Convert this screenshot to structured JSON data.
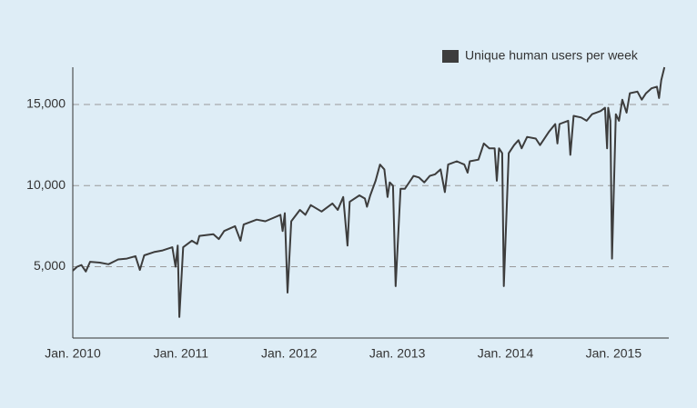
{
  "chart_data": {
    "type": "line",
    "x": [
      2010.0,
      2010.04,
      2010.08,
      2010.12,
      2010.16,
      2010.25,
      2010.33,
      2010.42,
      2010.5,
      2010.58,
      2010.62,
      2010.66,
      2010.75,
      2010.83,
      2010.92,
      2010.95,
      2010.97,
      2010.985,
      2011.02,
      2011.1,
      2011.15,
      2011.17,
      2011.3,
      2011.35,
      2011.4,
      2011.5,
      2011.55,
      2011.58,
      2011.7,
      2011.78,
      2011.85,
      2011.92,
      2011.94,
      2011.96,
      2011.985,
      2012.02,
      2012.1,
      2012.15,
      2012.2,
      2012.3,
      2012.4,
      2012.45,
      2012.5,
      2012.54,
      2012.56,
      2012.65,
      2012.7,
      2012.72,
      2012.75,
      2012.8,
      2012.84,
      2012.88,
      2012.91,
      2012.93,
      2012.96,
      2012.985,
      2013.03,
      2013.07,
      2013.1,
      2013.15,
      2013.2,
      2013.25,
      2013.3,
      2013.35,
      2013.4,
      2013.44,
      2013.47,
      2013.55,
      2013.62,
      2013.65,
      2013.67,
      2013.75,
      2013.8,
      2013.85,
      2013.9,
      2013.92,
      2013.94,
      2013.97,
      2013.985,
      2014.03,
      2014.08,
      2014.12,
      2014.15,
      2014.2,
      2014.28,
      2014.32,
      2014.4,
      2014.46,
      2014.48,
      2014.5,
      2014.58,
      2014.6,
      2014.63,
      2014.7,
      2014.75,
      2014.8,
      2014.88,
      2014.92,
      2014.94,
      2014.95,
      2014.97,
      2014.985,
      2015.02,
      2015.05,
      2015.08,
      2015.12,
      2015.15,
      2015.22,
      2015.26,
      2015.3,
      2015.35,
      2015.4,
      2015.42,
      2015.44,
      2015.47
    ],
    "series": [
      {
        "name": "Unique human users per week",
        "color": "#3d3d3d",
        "values": [
          4750,
          5000,
          5100,
          4700,
          5300,
          5250,
          5150,
          5450,
          5500,
          5650,
          4800,
          5700,
          5900,
          6000,
          6200,
          5000,
          6300,
          1900,
          6200,
          6600,
          6400,
          6900,
          7000,
          6700,
          7200,
          7500,
          6600,
          7600,
          7900,
          7800,
          8000,
          8200,
          7200,
          8300,
          3400,
          7800,
          8500,
          8200,
          8800,
          8400,
          8900,
          8500,
          9300,
          6300,
          9000,
          9400,
          9200,
          8700,
          9400,
          10300,
          11300,
          11000,
          9300,
          10200,
          10000,
          3800,
          9800,
          9800,
          10100,
          10600,
          10500,
          10200,
          10600,
          10700,
          11000,
          9600,
          11300,
          11500,
          11300,
          10800,
          11500,
          11600,
          12600,
          12300,
          12300,
          10300,
          12300,
          12000,
          3800,
          12000,
          12500,
          12800,
          12300,
          13000,
          12900,
          12500,
          13300,
          13800,
          12600,
          13800,
          14000,
          11900,
          14300,
          14200,
          14000,
          14400,
          14600,
          14800,
          12300,
          14800,
          14000,
          5500,
          14400,
          14000,
          15300,
          14500,
          15700,
          15800,
          15300,
          15700,
          16000,
          16100,
          15400,
          16500,
          17300
        ]
      }
    ],
    "xlim": [
      2010,
      2015.51
    ],
    "xticks": [
      {
        "value": 2010,
        "label": "Jan. 2010"
      },
      {
        "value": 2011,
        "label": "Jan. 2011"
      },
      {
        "value": 2012,
        "label": "Jan. 2012"
      },
      {
        "value": 2013,
        "label": "Jan. 2013"
      },
      {
        "value": 2014,
        "label": "Jan. 2014"
      },
      {
        "value": 2015,
        "label": "Jan. 2015"
      }
    ],
    "ylim": [
      600,
      17300
    ],
    "yticks": [
      {
        "value": 5000,
        "label": "5,000"
      },
      {
        "value": 10000,
        "label": "10,000"
      },
      {
        "value": 15000,
        "label": "15,000"
      }
    ],
    "grid": true,
    "legend": "top-right"
  }
}
